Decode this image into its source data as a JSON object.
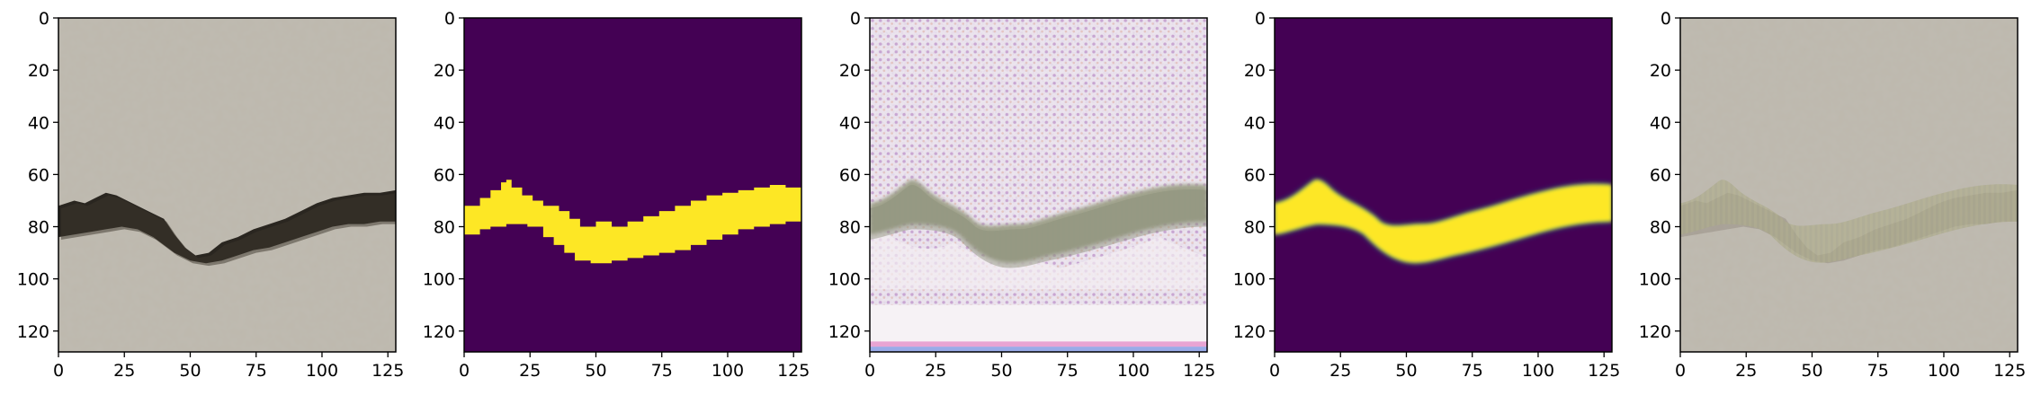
{
  "figure": {
    "panels": [
      {
        "name": "panel-1",
        "content": "photo of concrete wall with dark crack"
      },
      {
        "name": "panel-2",
        "content": "binary mask (purple background, yellow crack)"
      },
      {
        "name": "panel-3",
        "content": "noisy generated image with gray crack band"
      },
      {
        "name": "panel-4",
        "content": "smooth mask (purple background, yellow crack)"
      },
      {
        "name": "panel-5",
        "content": "wall photo with faint overlaid crack texture"
      }
    ],
    "x_ticks": [
      "0",
      "25",
      "50",
      "75",
      "100",
      "125"
    ],
    "y_ticks": [
      "0",
      "20",
      "40",
      "60",
      "80",
      "100",
      "120"
    ],
    "colors": {
      "mask_bg": "#440154",
      "mask_fg": "#fde725",
      "wall": "#bdb8ad",
      "crack": "#2a2620"
    }
  }
}
